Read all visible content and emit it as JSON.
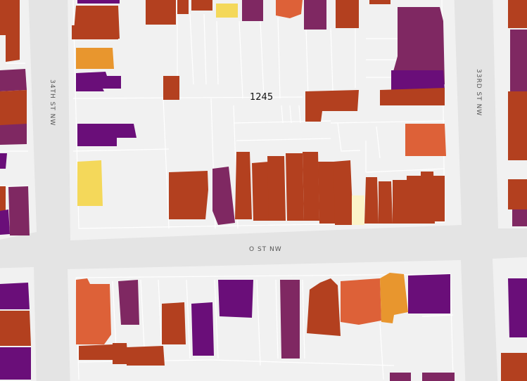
{
  "map": {
    "square_label": "1245",
    "streets": {
      "west": "34TH ST NW",
      "east": "33RD ST NW",
      "south": "O ST NW"
    },
    "colors": {
      "background": "#e4e4e4",
      "block": "#f1f1f1",
      "lot_line": "#ffffff",
      "building_dark_purple": "#6a0e79",
      "building_magenta": "#7f2862",
      "building_rust": "#b3401f",
      "building_orange": "#dd6138",
      "building_amber": "#e8962e",
      "building_yellow": "#f4d85a",
      "building_pale_yellow": "#fbf4c8"
    }
  }
}
